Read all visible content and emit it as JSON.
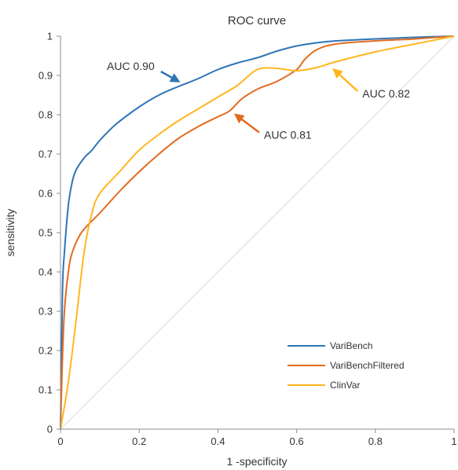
{
  "chart_data": {
    "type": "line",
    "title": "ROC curve",
    "xlabel": "1 -specificity",
    "ylabel": "sensitivity",
    "xlim": [
      0,
      1
    ],
    "ylim": [
      0,
      1
    ],
    "x_ticks": [
      "0",
      "0.2",
      "0.4",
      "0.6",
      "0.8",
      "1"
    ],
    "y_ticks": [
      "0",
      "0.1",
      "0.2",
      "0.3",
      "0.4",
      "0.5",
      "0.6",
      "0.7",
      "0.8",
      "0.9",
      "1"
    ],
    "grid": false,
    "legend_position": "bottom-right",
    "diagonal_reference": true,
    "series": [
      {
        "name": "VariBench",
        "color": "#2E75B6",
        "points": [
          [
            0,
            0
          ],
          [
            0.005,
            0.35
          ],
          [
            0.01,
            0.45
          ],
          [
            0.02,
            0.57
          ],
          [
            0.03,
            0.63
          ],
          [
            0.04,
            0.66
          ],
          [
            0.06,
            0.69
          ],
          [
            0.08,
            0.71
          ],
          [
            0.1,
            0.735
          ],
          [
            0.14,
            0.775
          ],
          [
            0.2,
            0.82
          ],
          [
            0.25,
            0.85
          ],
          [
            0.3,
            0.872
          ],
          [
            0.35,
            0.892
          ],
          [
            0.4,
            0.915
          ],
          [
            0.45,
            0.932
          ],
          [
            0.5,
            0.945
          ],
          [
            0.55,
            0.962
          ],
          [
            0.6,
            0.975
          ],
          [
            0.65,
            0.983
          ],
          [
            0.7,
            0.988
          ],
          [
            0.8,
            0.993
          ],
          [
            0.9,
            0.997
          ],
          [
            1,
            1
          ]
        ]
      },
      {
        "name": "VariBenchFiltered",
        "color": "#E26B1F",
        "points": [
          [
            0,
            0
          ],
          [
            0.005,
            0.18
          ],
          [
            0.01,
            0.3
          ],
          [
            0.02,
            0.4
          ],
          [
            0.03,
            0.45
          ],
          [
            0.05,
            0.495
          ],
          [
            0.07,
            0.52
          ],
          [
            0.1,
            0.55
          ],
          [
            0.15,
            0.605
          ],
          [
            0.2,
            0.655
          ],
          [
            0.25,
            0.7
          ],
          [
            0.3,
            0.74
          ],
          [
            0.35,
            0.77
          ],
          [
            0.4,
            0.795
          ],
          [
            0.43,
            0.81
          ],
          [
            0.46,
            0.84
          ],
          [
            0.5,
            0.865
          ],
          [
            0.55,
            0.885
          ],
          [
            0.6,
            0.915
          ],
          [
            0.62,
            0.94
          ],
          [
            0.65,
            0.965
          ],
          [
            0.7,
            0.98
          ],
          [
            0.8,
            0.988
          ],
          [
            0.9,
            0.993
          ],
          [
            1,
            1
          ]
        ]
      },
      {
        "name": "ClinVar",
        "color": "#FFB61E",
        "points": [
          [
            0,
            0
          ],
          [
            0.02,
            0.12
          ],
          [
            0.04,
            0.28
          ],
          [
            0.06,
            0.45
          ],
          [
            0.08,
            0.55
          ],
          [
            0.1,
            0.6
          ],
          [
            0.15,
            0.655
          ],
          [
            0.2,
            0.71
          ],
          [
            0.25,
            0.75
          ],
          [
            0.3,
            0.785
          ],
          [
            0.35,
            0.815
          ],
          [
            0.4,
            0.845
          ],
          [
            0.45,
            0.875
          ],
          [
            0.5,
            0.915
          ],
          [
            0.55,
            0.918
          ],
          [
            0.6,
            0.912
          ],
          [
            0.65,
            0.92
          ],
          [
            0.7,
            0.935
          ],
          [
            0.8,
            0.96
          ],
          [
            0.9,
            0.98
          ],
          [
            1,
            1
          ]
        ]
      }
    ],
    "annotations": [
      {
        "text": "AUC 0.90",
        "color": "#2E75B6",
        "arrow_from": [
          0.255,
          0.91
        ],
        "arrow_to": [
          0.3,
          0.885
        ]
      },
      {
        "text": "AUC 0.81",
        "color": "#E26B1F",
        "arrow_from": [
          0.505,
          0.755
        ],
        "arrow_to": [
          0.445,
          0.8
        ]
      },
      {
        "text": "AUC 0.82",
        "color": "#FFB61E",
        "arrow_from": [
          0.755,
          0.86
        ],
        "arrow_to": [
          0.695,
          0.915
        ]
      }
    ]
  }
}
